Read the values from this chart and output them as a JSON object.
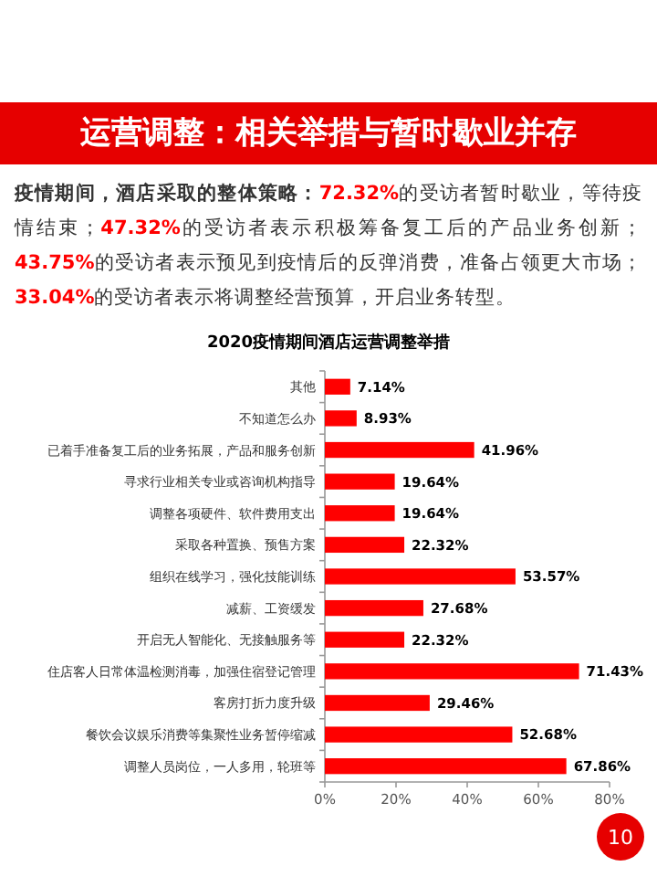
{
  "chart_data": {
    "type": "bar",
    "orientation": "horizontal",
    "title": "运营调整：相关举措与暂时歇业并存",
    "subtitle": "**疫情期间，酒店采取的整体策略：72.32%**的受访者暂时歇业，等待疫情结束；**47.32%**的受访者表示积极筹备复工后的产品业务创新；**43.75%**的受访者表示预见到疫情后的反弹消费，准备占领更大市场；**33.04%**的受访者表示将调整经营预算，开启业务转型。",
    "xlabel": "2020疫情期间酒店运营调整举措",
    "categories": [
      "其他",
      "不知道怎么办",
      "已着手准备复工后的业务拓展，产品和服务创新",
      "寻求行业相关专业或咨询机构指导",
      "调整各项硬件、软件费用支出",
      "采取各种置换、预售方案",
      "组织在线学习，强化技能训练",
      "减薪、工资缓发",
      "开启无人智能化、无接触服务等",
      "住店客人日常体温检测消毒，加强住宿登记管理",
      "客房打折力度升级",
      "餐饮会议娱乐消费等集聚性业务暂停缩减",
      "调整人员岗位，一人多用，轮班等"
    ],
    "values": [
      7.14,
      8.93,
      41.96,
      19.64,
      19.64,
      22.32,
      53.57,
      27.68,
      22.32,
      71.43,
      29.46,
      52.68,
      67.86
    ],
    "value_labels": [
      "7.14%",
      "8.93%",
      "41.96%",
      "19.64%",
      "19.64%",
      "22.32%",
      "53.57%",
      "27.68%",
      "22.32%",
      "71.43%",
      "29.46%",
      "52.68%",
      "67.86%"
    ],
    "color": "#ff0000",
    "xlim": [
      0,
      80
    ],
    "xticks": [
      {
        "value": 0,
        "label": "0%"
      },
      {
        "value": 20,
        "label": "20%"
      },
      {
        "value": 40,
        "label": "40%"
      },
      {
        "value": 60,
        "label": "60%"
      },
      {
        "value": 80,
        "label": "80%"
      }
    ],
    "grid": false,
    "annotations": [
      "10"
    ]
  }
}
